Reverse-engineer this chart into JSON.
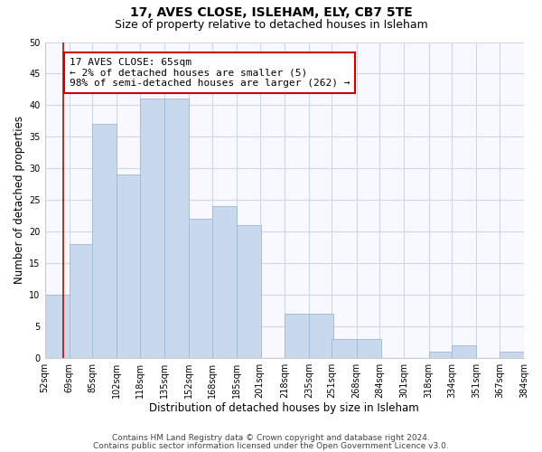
{
  "title": "17, AVES CLOSE, ISLEHAM, ELY, CB7 5TE",
  "subtitle": "Size of property relative to detached houses in Isleham",
  "xlabel": "Distribution of detached houses by size in Isleham",
  "ylabel": "Number of detached properties",
  "bar_color": "#c8d8ed",
  "bar_edgecolor": "#a0b8d0",
  "bar_left_edges": [
    52,
    69,
    85,
    102,
    118,
    135,
    152,
    168,
    185,
    201,
    218,
    235,
    251,
    268,
    284,
    301,
    318,
    334,
    351,
    367
  ],
  "bar_heights": [
    10,
    18,
    37,
    29,
    41,
    41,
    22,
    24,
    21,
    0,
    7,
    7,
    3,
    3,
    0,
    0,
    1,
    2,
    0,
    1
  ],
  "bin_width": 17,
  "xlim_left": 52,
  "xlim_right": 384,
  "ylim_top": 50,
  "yticks": [
    0,
    5,
    10,
    15,
    20,
    25,
    30,
    35,
    40,
    45,
    50
  ],
  "xtick_labels": [
    "52sqm",
    "69sqm",
    "85sqm",
    "102sqm",
    "118sqm",
    "135sqm",
    "152sqm",
    "168sqm",
    "185sqm",
    "201sqm",
    "218sqm",
    "235sqm",
    "251sqm",
    "268sqm",
    "284sqm",
    "301sqm",
    "318sqm",
    "334sqm",
    "351sqm",
    "367sqm",
    "384sqm"
  ],
  "xtick_positions": [
    52,
    69,
    85,
    102,
    118,
    135,
    152,
    168,
    185,
    201,
    218,
    235,
    251,
    268,
    284,
    301,
    318,
    334,
    351,
    367,
    384
  ],
  "reference_line_x": 65,
  "reference_line_color": "#cc0000",
  "annotation_text": "17 AVES CLOSE: 65sqm\n← 2% of detached houses are smaller (5)\n98% of semi-detached houses are larger (262) →",
  "annotation_box_edgecolor": "#cc0000",
  "annotation_box_facecolor": "#ffffff",
  "footer1": "Contains HM Land Registry data © Crown copyright and database right 2024.",
  "footer2": "Contains public sector information licensed under the Open Government Licence v3.0.",
  "background_color": "#ffffff",
  "plot_bg_color": "#f8f8ff",
  "grid_color": "#d0d8e8",
  "title_fontsize": 10,
  "subtitle_fontsize": 9,
  "axis_label_fontsize": 8.5,
  "tick_fontsize": 7,
  "annotation_fontsize": 8,
  "footer_fontsize": 6.5
}
